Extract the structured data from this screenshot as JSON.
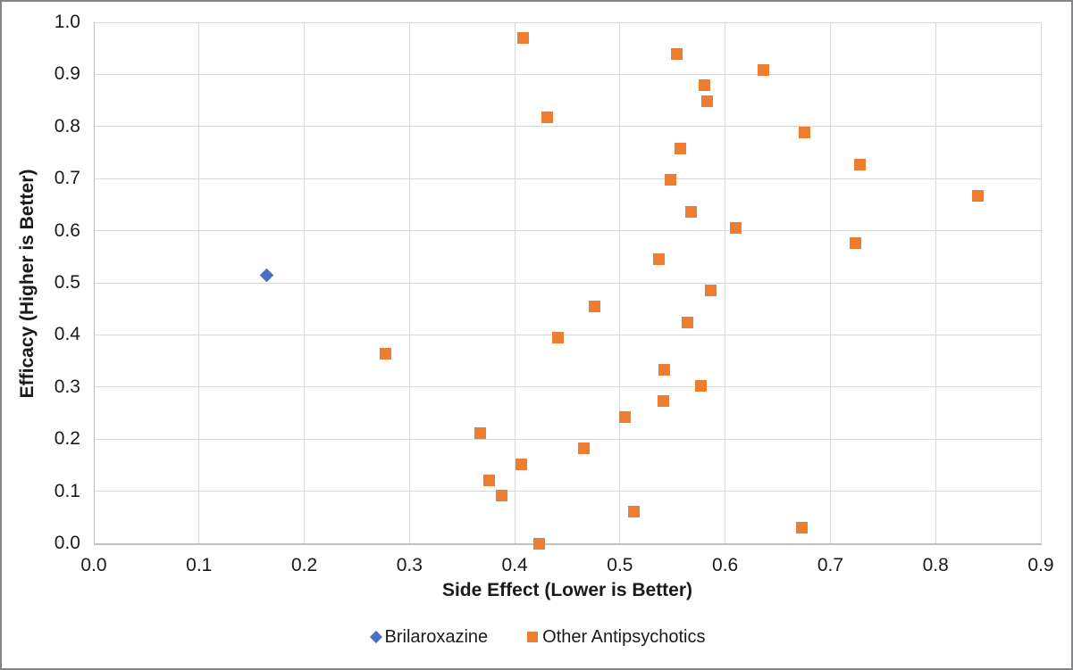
{
  "chart_data": {
    "type": "scatter",
    "xlabel": "Side Effect (Lower is Better)",
    "ylabel": "Efficacy (Higher is Better)",
    "xlim": [
      0.0,
      0.9
    ],
    "ylim": [
      0.0,
      1.0
    ],
    "x_tick_step": 0.1,
    "y_tick_step": 0.1,
    "grid": true,
    "legend_position": "bottom-center",
    "colors": {
      "brilaroxazine": "#4472C4",
      "other_antipsychotics": "#ED7D31",
      "gridline": "#D9D9D9",
      "axis_line": "#BFBFBF",
      "text": "#1a1a1a",
      "frame": "#818689",
      "background": "#FFFFFF"
    },
    "series": [
      {
        "name": "Brilaroxazine",
        "marker": "diamond",
        "color": "#4472C4",
        "points": [
          [
            0.164,
            0.5152
          ]
        ]
      },
      {
        "name": "Other Antipsychotics",
        "marker": "square",
        "color": "#ED7D31",
        "points": [
          [
            0.408,
            0.9697
          ],
          [
            0.554,
            0.9394
          ],
          [
            0.636,
            0.9091
          ],
          [
            0.58,
            0.8788
          ],
          [
            0.583,
            0.8485
          ],
          [
            0.431,
            0.8182
          ],
          [
            0.675,
            0.7879
          ],
          [
            0.557,
            0.7576
          ],
          [
            0.728,
            0.7273
          ],
          [
            0.548,
            0.697
          ],
          [
            0.84,
            0.6667
          ],
          [
            0.568,
            0.6364
          ],
          [
            0.61,
            0.6061
          ],
          [
            0.724,
            0.5758
          ],
          [
            0.537,
            0.5455
          ],
          [
            0.586,
            0.4848
          ],
          [
            0.476,
            0.4545
          ],
          [
            0.564,
            0.4242
          ],
          [
            0.441,
            0.3939
          ],
          [
            0.277,
            0.3636
          ],
          [
            0.542,
            0.3333
          ],
          [
            0.577,
            0.303
          ],
          [
            0.541,
            0.2727
          ],
          [
            0.505,
            0.2424
          ],
          [
            0.367,
            0.2121
          ],
          [
            0.466,
            0.1818
          ],
          [
            0.406,
            0.1515
          ],
          [
            0.376,
            0.1212
          ],
          [
            0.388,
            0.0909
          ],
          [
            0.513,
            0.0606
          ],
          [
            0.673,
            0.0303
          ],
          [
            0.423,
            0.0
          ]
        ]
      }
    ]
  }
}
